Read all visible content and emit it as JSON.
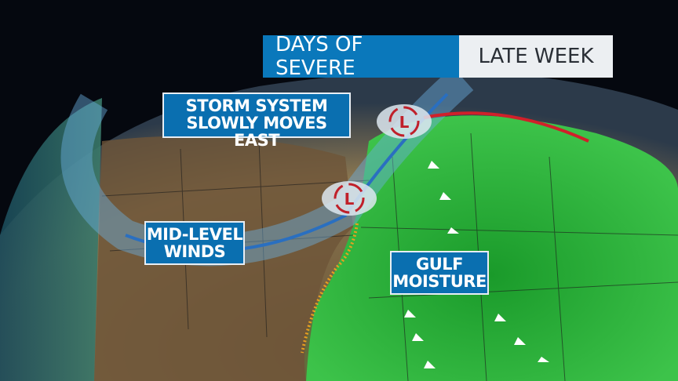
{
  "header": {
    "title": "DAYS OF SEVERE",
    "subtitle": "LATE WEEK"
  },
  "labels": {
    "storm": [
      "STORM SYSTEM",
      "SLOWLY MOVES EAST"
    ],
    "winds": [
      "MID-LEVEL",
      "WINDS"
    ],
    "gulf": [
      "GULF",
      "MOISTURE"
    ]
  },
  "colors": {
    "label_blue": "#0a6fb0",
    "land_west": "#7a6140",
    "land_east": "#2fa63a",
    "cold_front": "#2a6fc0",
    "warm_front": "#d0202a",
    "dry_line": "#e8a020"
  },
  "symbols": {
    "lows": [
      "low-pressure-icon",
      "low-pressure-icon"
    ]
  }
}
